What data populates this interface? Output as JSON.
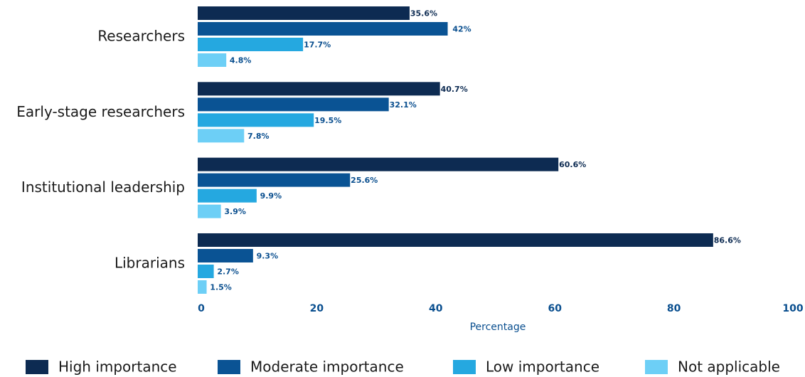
{
  "chart_data": {
    "type": "bar",
    "orientation": "horizontal",
    "categories": [
      "Researchers",
      "Early-stage researchers",
      "Institutional leadership",
      "Librarians"
    ],
    "series": [
      {
        "name": "High importance",
        "color": "#0d2b52",
        "values": [
          35.6,
          40.7,
          60.6,
          86.6
        ],
        "labels": [
          "35.6%",
          "40.7%",
          "60.6%",
          "86.6%"
        ]
      },
      {
        "name": "Moderate importance",
        "color": "#0a5394",
        "values": [
          42,
          32.1,
          25.6,
          9.3
        ],
        "labels": [
          "42%",
          "32.1%",
          "25.6%",
          "9.3%"
        ]
      },
      {
        "name": "Low importance",
        "color": "#25a8e0",
        "values": [
          17.7,
          19.5,
          9.9,
          2.7
        ],
        "labels": [
          "17.7%",
          "19.5%",
          "9.9%",
          "2.7%"
        ]
      },
      {
        "name": "Not applicable",
        "color": "#6dcff6",
        "values": [
          4.8,
          7.8,
          3.9,
          1.5
        ],
        "labels": [
          "4.8%",
          "7.8%",
          "3.9%",
          "1.5%"
        ]
      }
    ],
    "xlabel": "Percentage",
    "xlim": [
      0,
      100
    ],
    "xticks": [
      "0",
      "20",
      "40",
      "60",
      "80",
      "100"
    ],
    "grid": false,
    "legend": "bottom"
  }
}
